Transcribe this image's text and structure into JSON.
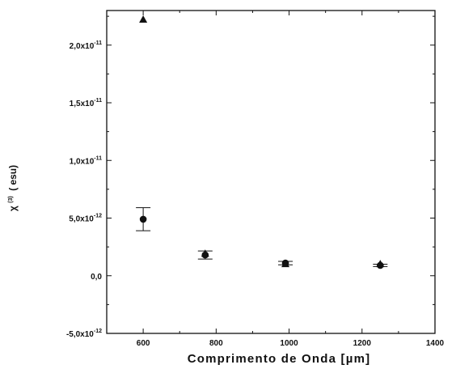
{
  "chart_data": {
    "type": "scatter",
    "title": "",
    "xlabel": "Comprimento de Onda [µm]",
    "ylabel_main": "χ",
    "ylabel_sup": "(3)",
    "ylabel_unit": "( esu)",
    "xlim": [
      500,
      1400
    ],
    "ylim": [
      -5e-12,
      2.3e-11
    ],
    "xticks": [
      {
        "value": 600,
        "label": "600"
      },
      {
        "value": 800,
        "label": "800"
      },
      {
        "value": 1000,
        "label": "1000"
      },
      {
        "value": 1200,
        "label": "1200"
      },
      {
        "value": 1400,
        "label": "1400"
      }
    ],
    "yticks": [
      {
        "value": -5e-12,
        "mant": "-5,0x10",
        "exp": "-12"
      },
      {
        "value": 0,
        "mant": "0,0",
        "exp": ""
      },
      {
        "value": 5e-12,
        "mant": "5,0x10",
        "exp": "-12"
      },
      {
        "value": 1e-11,
        "mant": "1,0x10",
        "exp": "-11"
      },
      {
        "value": 1.5e-11,
        "mant": "1,5x10",
        "exp": "-11"
      },
      {
        "value": 2e-11,
        "mant": "2,0x10",
        "exp": "-11"
      }
    ],
    "series": [
      {
        "marker": "circle",
        "points": [
          {
            "x": 600,
            "y": 4.9e-12,
            "err": 1e-12
          },
          {
            "x": 770,
            "y": 1.8e-12,
            "err": 3.5e-13
          },
          {
            "x": 990,
            "y": 1.1e-12,
            "err": 1.5e-13
          },
          {
            "x": 1250,
            "y": 9e-13,
            "err": 1e-13
          }
        ]
      },
      {
        "marker": "triangle",
        "points": [
          {
            "x": 600,
            "y": 2.22e-11
          },
          {
            "x": 770,
            "y": 1.9e-12
          },
          {
            "x": 990,
            "y": 1e-12
          },
          {
            "x": 1250,
            "y": 1e-12
          }
        ]
      }
    ],
    "grid": false,
    "color": "#111111"
  }
}
